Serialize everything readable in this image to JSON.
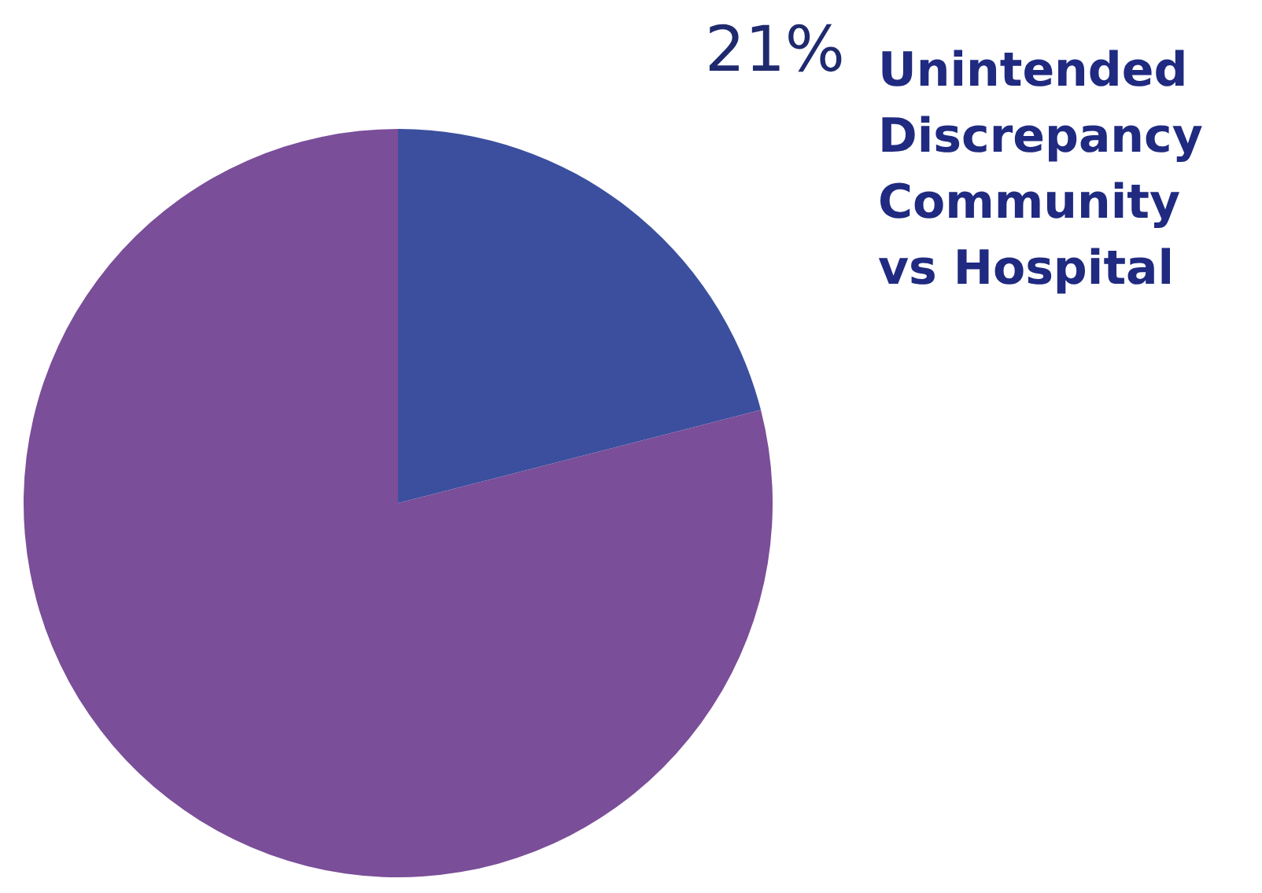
{
  "chart_data": {
    "type": "pie",
    "categories": [
      "Unintended Discrepancy Community vs Hospital",
      null
    ],
    "values": [
      21,
      79
    ],
    "colors": [
      "#3b4f9e",
      "#7a4e98"
    ],
    "value_labels": [
      "21%",
      null
    ]
  }
}
